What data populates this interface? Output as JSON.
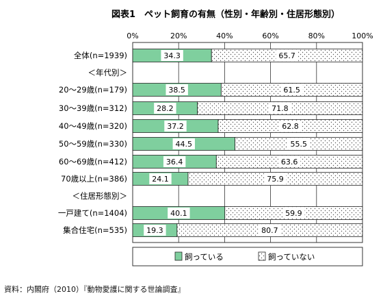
{
  "chart_data": {
    "type": "bar",
    "stacked": true,
    "orientation": "horizontal",
    "title": "図表1　ペット飼育の有無（性別・年齢別・住居形態別）",
    "xlim": [
      0,
      100
    ],
    "x_ticks": [
      "0%",
      "20%",
      "40%",
      "60%",
      "80%",
      "100%"
    ],
    "rows": [
      {
        "label": "全体(n=1939)",
        "values": [
          34.3,
          65.7
        ]
      },
      {
        "label": "＜年代別＞",
        "values": null
      },
      {
        "label": "20～29歳(n=179)",
        "values": [
          38.5,
          61.5
        ]
      },
      {
        "label": "30～39歳(n=312)",
        "values": [
          28.2,
          71.8
        ]
      },
      {
        "label": "40～49歳(n=320)",
        "values": [
          37.2,
          62.8
        ]
      },
      {
        "label": "50～59歳(n=330)",
        "values": [
          44.5,
          55.5
        ]
      },
      {
        "label": "60～69歳(n=412)",
        "values": [
          36.4,
          63.6
        ]
      },
      {
        "label": "70歳以上(n=386)",
        "values": [
          24.1,
          75.9
        ]
      },
      {
        "label": "＜住居形態別＞",
        "values": null
      },
      {
        "label": "一戸建て(n=1404)",
        "values": [
          40.1,
          59.9
        ]
      },
      {
        "label": "集合住宅(n=535)",
        "values": [
          19.3,
          80.7
        ]
      }
    ],
    "series": [
      {
        "name": "飼っている",
        "color": "#7fcf9e",
        "fill": "solid"
      },
      {
        "name": "飼っていない",
        "color": "#ffffff",
        "fill": "dots"
      }
    ],
    "legend_position": "bottom",
    "grid": true
  },
  "source_text": "資料：内閣府（2010）『動物愛護に関する世論調査』"
}
